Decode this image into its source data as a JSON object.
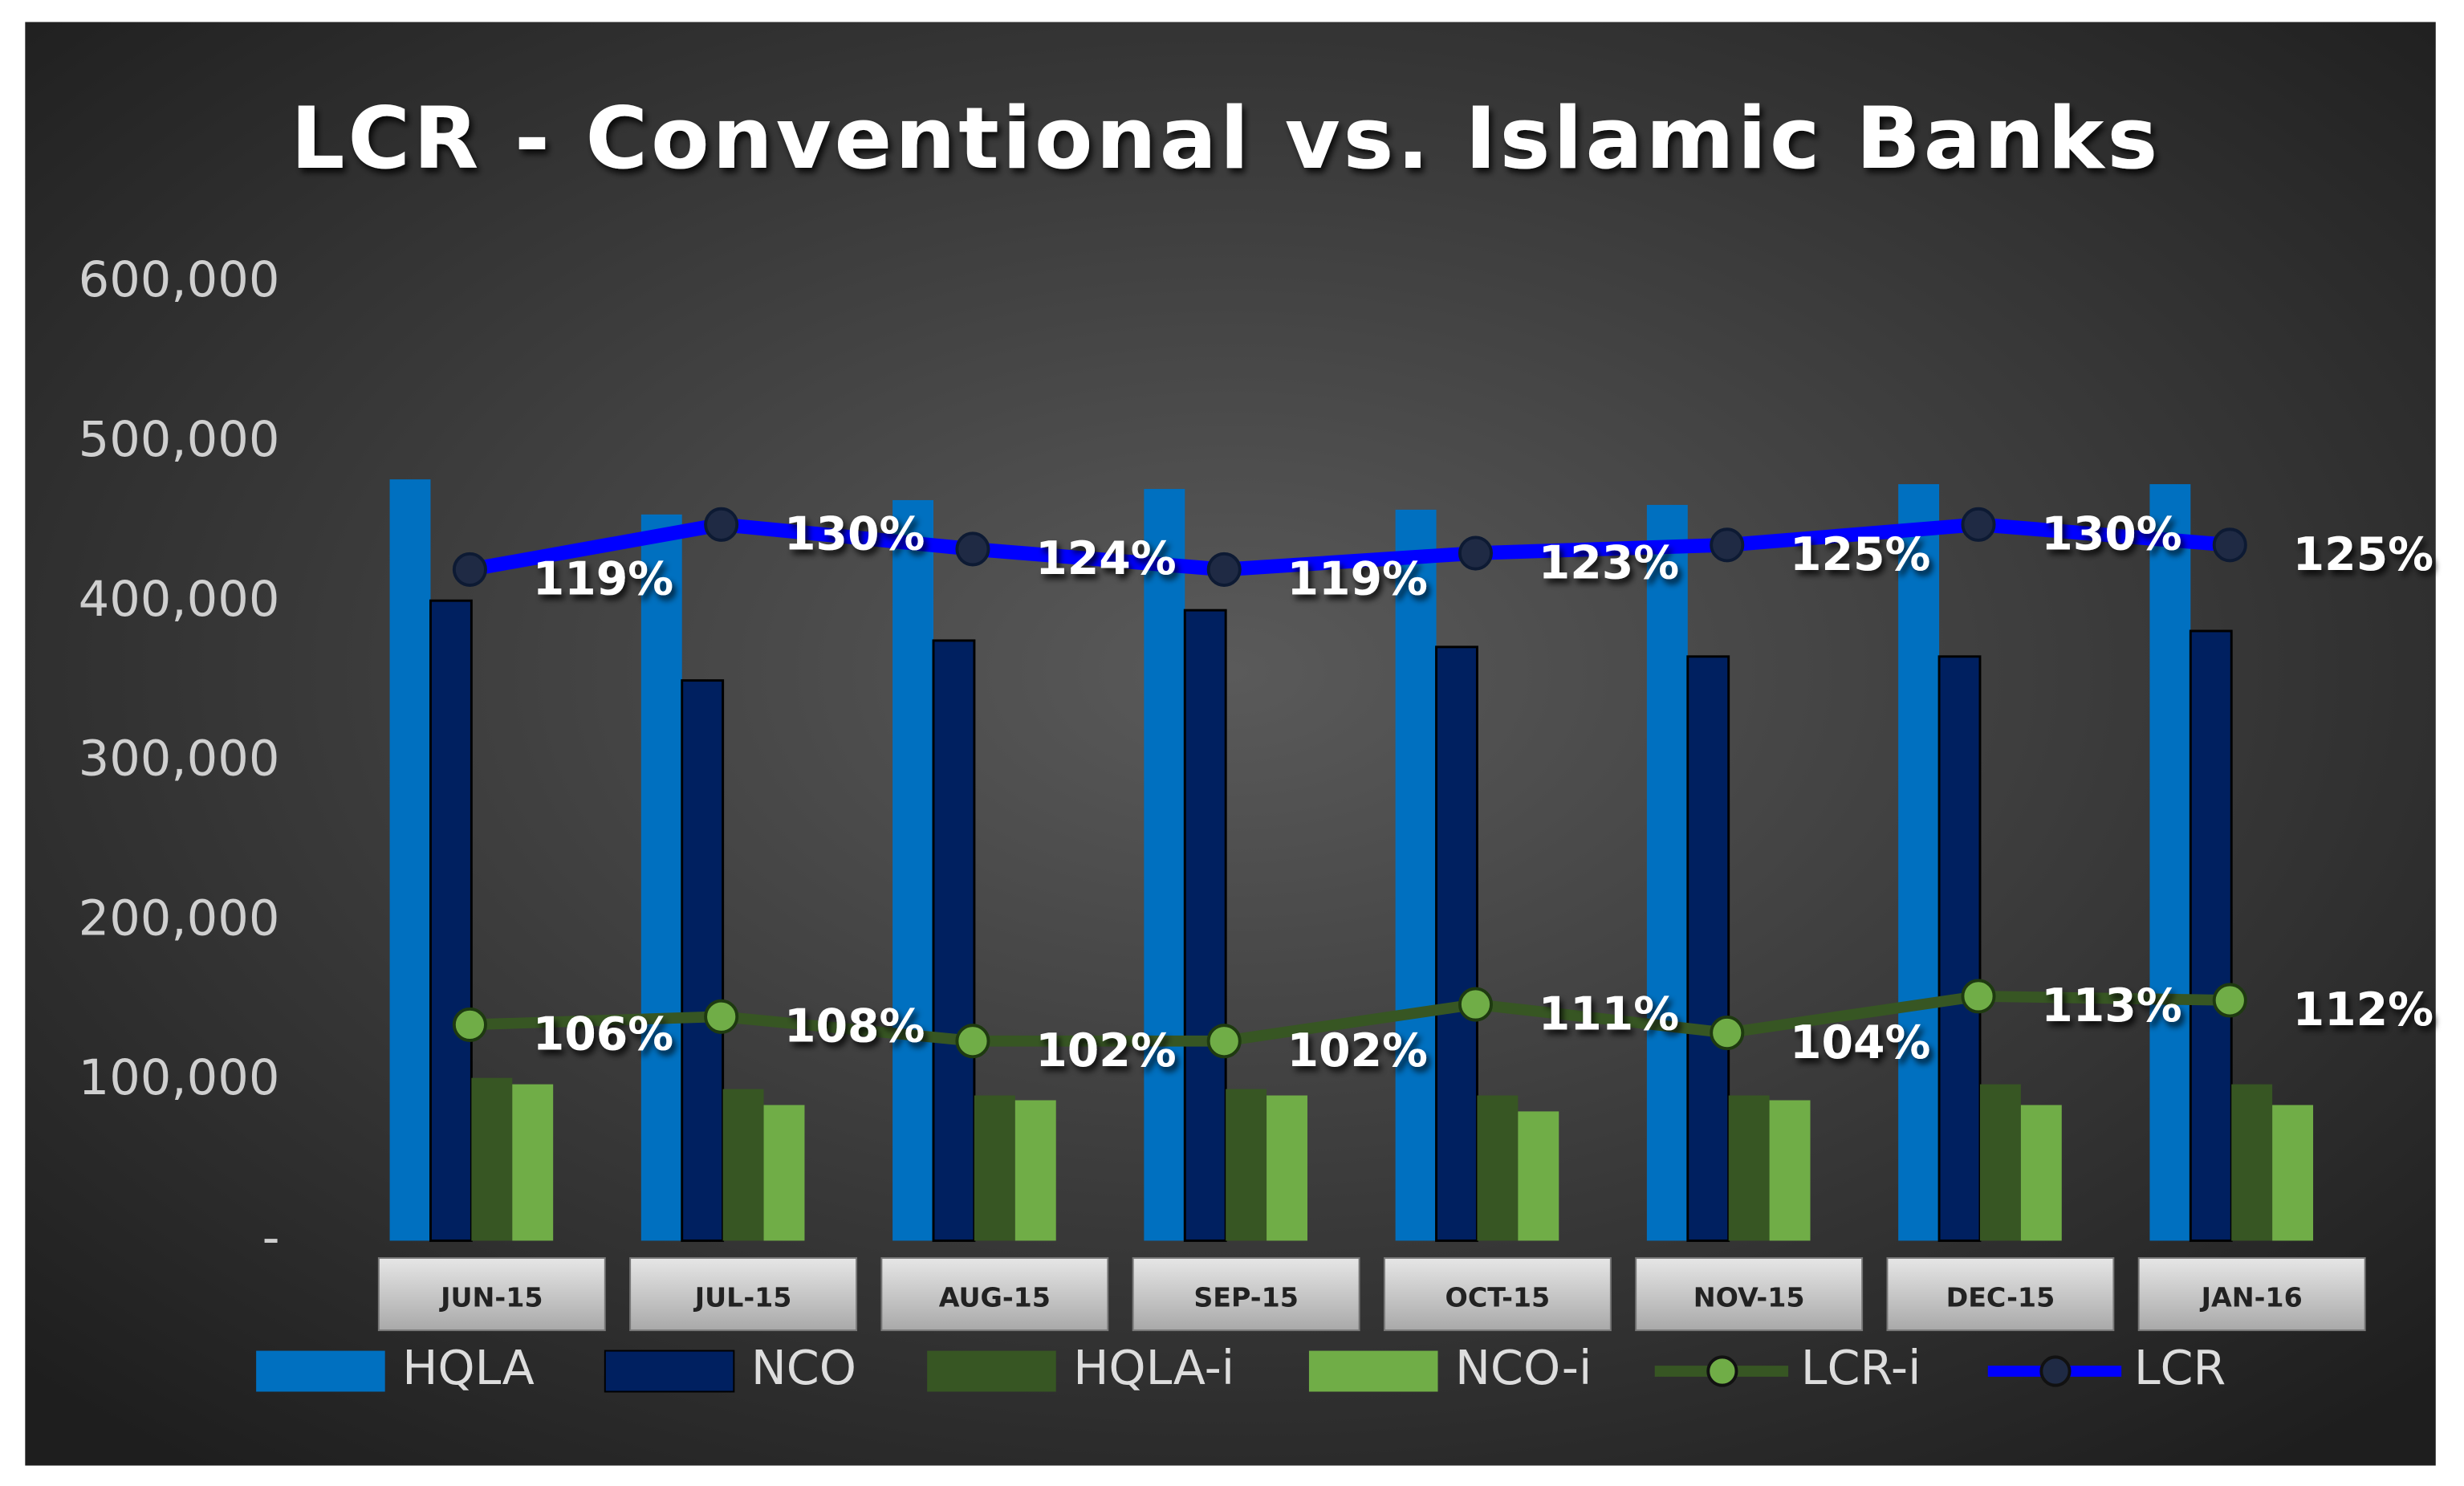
{
  "chart_data": {
    "type": "bar",
    "title": "LCR - Conventional  vs.  Islamic  Banks",
    "categories": [
      "JUN-15",
      "JUL-15",
      "AUG-15",
      "SEP-15",
      "OCT-15",
      "NOV-15",
      "DEC-15",
      "JAN-16"
    ],
    "ylim": [
      0,
      600000
    ],
    "yticks": [
      {
        "value": 0,
        "label": "-"
      },
      {
        "value": 100000,
        "label": "100,000"
      },
      {
        "value": 200000,
        "label": "200,000"
      },
      {
        "value": 300000,
        "label": "300,000"
      },
      {
        "value": 400000,
        "label": "400,000"
      },
      {
        "value": 500000,
        "label": "500,000"
      },
      {
        "value": 600000,
        "label": "600,000"
      }
    ],
    "y2lim": [
      -45,
      189
    ],
    "y3lim": [
      53,
      288
    ],
    "grid": false,
    "legend": "bottom",
    "series": [
      {
        "name": "HQLA",
        "type": "bar",
        "color": "#0070c0",
        "values": [
          477000,
          455000,
          464000,
          471000,
          458000,
          461000,
          474000,
          474000
        ]
      },
      {
        "name": "NCO",
        "type": "bar",
        "color": "#002060",
        "values": [
          401000,
          351000,
          376000,
          395000,
          372000,
          366000,
          366000,
          382000
        ]
      },
      {
        "name": "HQLA-i",
        "type": "bar",
        "color": "#375623",
        "values": [
          102000,
          95000,
          91000,
          95000,
          91000,
          91000,
          98000,
          98000
        ]
      },
      {
        "name": "NCO-i",
        "type": "bar",
        "color": "#70ad47",
        "values": [
          98000,
          85000,
          88000,
          91000,
          81000,
          88000,
          85000,
          85000
        ]
      },
      {
        "name": "LCR-i",
        "type": "line",
        "axis": "y3",
        "color": "#375623",
        "marker_color": "#70ad47",
        "values": [
          106,
          108,
          102,
          102,
          111,
          104,
          113,
          112
        ],
        "value_labels": [
          "106%",
          "108%",
          "102%",
          "102%",
          "111%",
          "104%",
          "113%",
          "112%"
        ]
      },
      {
        "name": "LCR",
        "type": "line",
        "axis": "y2",
        "color": "#0000ff",
        "marker_color": "#1f2a44",
        "values": [
          119,
          130,
          124,
          119,
          123,
          125,
          130,
          125
        ],
        "value_labels": [
          "119%",
          "130%",
          "124%",
          "119%",
          "123%",
          "125%",
          "130%",
          "125%"
        ]
      }
    ]
  }
}
